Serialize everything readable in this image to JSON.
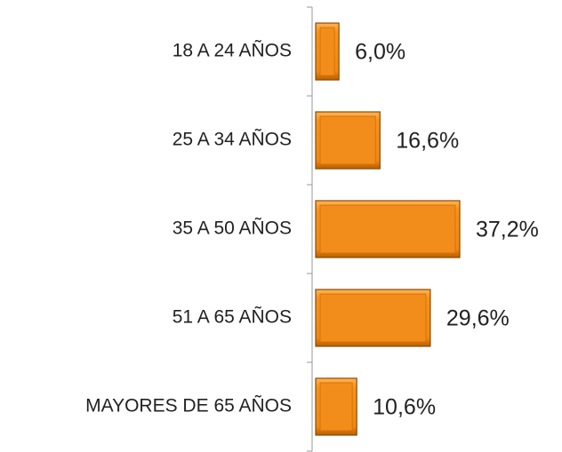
{
  "chart_data": {
    "type": "bar",
    "orientation": "horizontal",
    "categories": [
      "18 A 24 AÑOS",
      "25 A 34 AÑOS",
      "35 A 50 AÑOS",
      "51 A 65 AÑOS",
      "MAYORES DE 65 AÑOS"
    ],
    "values": [
      6.0,
      16.6,
      37.2,
      29.6,
      10.6
    ],
    "value_labels": [
      "6,0%",
      "16,6%",
      "37,2%",
      "29,6%",
      "10,6%"
    ],
    "color": "#f28c1a"
  }
}
